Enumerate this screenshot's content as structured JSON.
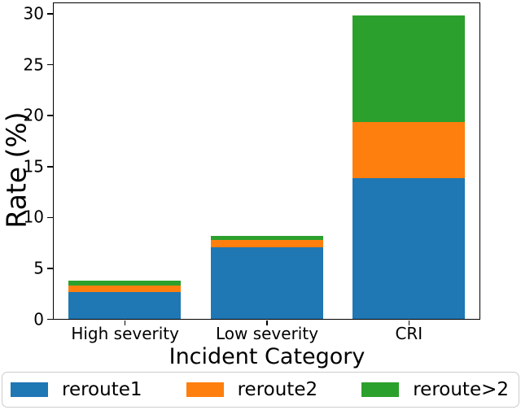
{
  "chart_data": {
    "type": "bar",
    "stacked": true,
    "title": "",
    "xlabel": "Incident Category",
    "ylabel": "Rate (%)",
    "categories": [
      "High severity",
      "Low severity",
      "CRI"
    ],
    "series": [
      {
        "name": "reroute1",
        "color": "#1f77b4",
        "values": [
          2.65,
          7.0,
          13.8
        ]
      },
      {
        "name": "reroute2",
        "color": "#ff7f0e",
        "values": [
          0.65,
          0.75,
          5.5
        ]
      },
      {
        "name": "reroute>2",
        "color": "#2ca02c",
        "values": [
          0.45,
          0.4,
          10.5
        ]
      }
    ],
    "totals": [
      3.75,
      8.15,
      29.8
    ],
    "ylim": [
      0,
      31
    ],
    "yticks": [
      0,
      5,
      10,
      15,
      20,
      25,
      30
    ],
    "grid": false,
    "legend_position": "bottom",
    "colors": {
      "axis": "#000000",
      "background": "#ffffff",
      "legend_border": "#cccccc"
    }
  }
}
